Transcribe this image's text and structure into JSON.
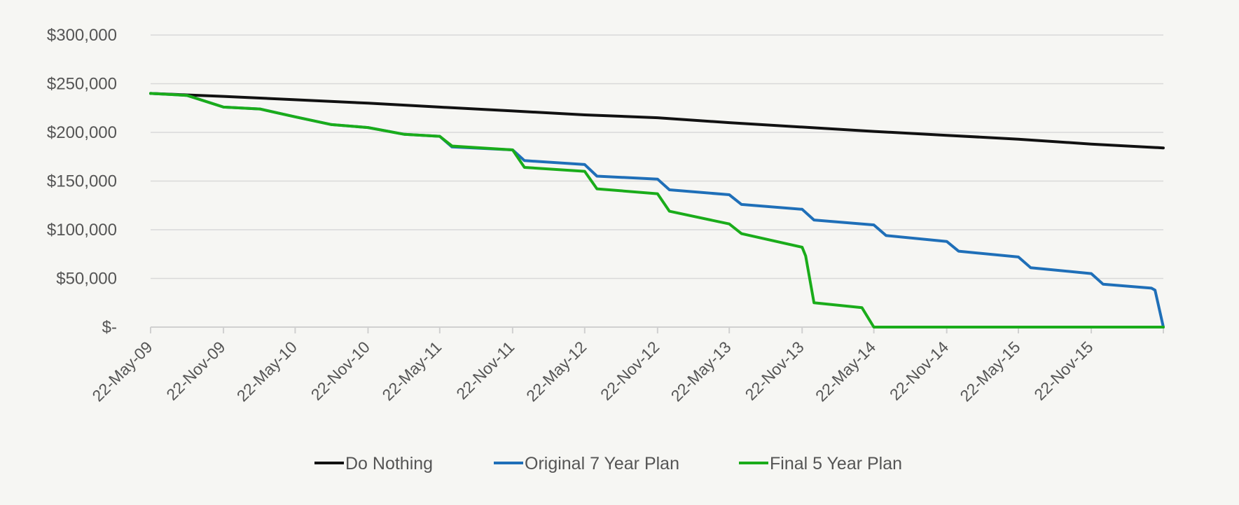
{
  "chart_data": {
    "type": "line",
    "title": "",
    "xlabel": "",
    "ylabel": "",
    "grid": true,
    "legend_position": "bottom",
    "ylim": [
      0,
      300000
    ],
    "yticks": [
      0,
      50000,
      100000,
      150000,
      200000,
      250000,
      300000
    ],
    "ytick_labels": [
      "$-",
      "$50,000",
      "$100,000",
      "$150,000",
      "$200,000",
      "$250,000",
      "$300,000"
    ],
    "xlim": [
      "2009-05-22",
      "2016-05-22"
    ],
    "xtick_labels": [
      "22-May-09",
      "22-Nov-09",
      "22-May-10",
      "22-Nov-10",
      "22-May-11",
      "22-Nov-11",
      "22-May-12",
      "22-Nov-12",
      "22-May-13",
      "22-Nov-13",
      "22-May-14",
      "22-Nov-14",
      "22-May-15",
      "22-Nov-15"
    ],
    "xtick_dates": [
      "2009-05-22",
      "2009-11-22",
      "2010-05-22",
      "2010-11-22",
      "2011-05-22",
      "2011-11-22",
      "2012-05-22",
      "2012-11-22",
      "2013-05-22",
      "2013-11-22",
      "2014-05-22",
      "2014-11-22",
      "2015-05-22",
      "2015-11-22"
    ],
    "series": [
      {
        "name": "Do Nothing",
        "color": "#111111",
        "points": [
          [
            "2009-05-22",
            240000
          ],
          [
            "2009-11-22",
            237000
          ],
          [
            "2010-05-22",
            233500
          ],
          [
            "2010-11-22",
            230000
          ],
          [
            "2011-05-22",
            226000
          ],
          [
            "2011-11-22",
            222000
          ],
          [
            "2012-05-22",
            218000
          ],
          [
            "2012-11-22",
            215000
          ],
          [
            "2013-05-22",
            210000
          ],
          [
            "2013-11-22",
            205500
          ],
          [
            "2014-05-22",
            201000
          ],
          [
            "2014-11-22",
            197000
          ],
          [
            "2015-05-22",
            193000
          ],
          [
            "2015-11-22",
            188000
          ],
          [
            "2016-05-22",
            184000
          ]
        ]
      },
      {
        "name": "Original 7 Year Plan",
        "color": "#1f6fb8",
        "points": [
          [
            "2009-05-22",
            240000
          ],
          [
            "2009-08-22",
            238000
          ],
          [
            "2009-11-22",
            226000
          ],
          [
            "2010-02-22",
            224000
          ],
          [
            "2010-05-22",
            216000
          ],
          [
            "2010-08-22",
            208000
          ],
          [
            "2010-11-22",
            205000
          ],
          [
            "2011-02-22",
            198000
          ],
          [
            "2011-05-22",
            196000
          ],
          [
            "2011-06-22",
            185000
          ],
          [
            "2011-11-22",
            182000
          ],
          [
            "2011-12-22",
            171000
          ],
          [
            "2012-05-22",
            167000
          ],
          [
            "2012-06-22",
            155000
          ],
          [
            "2012-11-22",
            152000
          ],
          [
            "2012-12-22",
            141000
          ],
          [
            "2013-05-22",
            136000
          ],
          [
            "2013-06-22",
            126000
          ],
          [
            "2013-11-22",
            121000
          ],
          [
            "2013-12-22",
            110000
          ],
          [
            "2014-05-22",
            105000
          ],
          [
            "2014-06-22",
            94000
          ],
          [
            "2014-11-22",
            88000
          ],
          [
            "2014-12-22",
            78000
          ],
          [
            "2015-05-22",
            72000
          ],
          [
            "2015-06-22",
            61000
          ],
          [
            "2015-11-22",
            55000
          ],
          [
            "2015-12-22",
            44000
          ],
          [
            "2016-04-22",
            40000
          ],
          [
            "2016-05-01",
            38000
          ],
          [
            "2016-05-22",
            0
          ]
        ]
      },
      {
        "name": "Final 5 Year Plan",
        "color": "#1aac1a",
        "points": [
          [
            "2009-05-22",
            240000
          ],
          [
            "2009-08-22",
            238000
          ],
          [
            "2009-11-22",
            226000
          ],
          [
            "2010-02-22",
            224000
          ],
          [
            "2010-05-22",
            216000
          ],
          [
            "2010-08-22",
            208000
          ],
          [
            "2010-11-22",
            205000
          ],
          [
            "2011-02-22",
            198000
          ],
          [
            "2011-05-22",
            196000
          ],
          [
            "2011-06-22",
            186000
          ],
          [
            "2011-11-22",
            182000
          ],
          [
            "2011-12-22",
            164000
          ],
          [
            "2012-05-22",
            160000
          ],
          [
            "2012-06-22",
            142000
          ],
          [
            "2012-11-22",
            137000
          ],
          [
            "2012-12-22",
            119000
          ],
          [
            "2013-05-22",
            106000
          ],
          [
            "2013-06-22",
            96000
          ],
          [
            "2013-11-22",
            82000
          ],
          [
            "2013-12-01",
            73000
          ],
          [
            "2013-12-22",
            25000
          ],
          [
            "2014-04-22",
            20000
          ],
          [
            "2014-05-22",
            0
          ],
          [
            "2016-05-22",
            0
          ]
        ]
      }
    ]
  }
}
